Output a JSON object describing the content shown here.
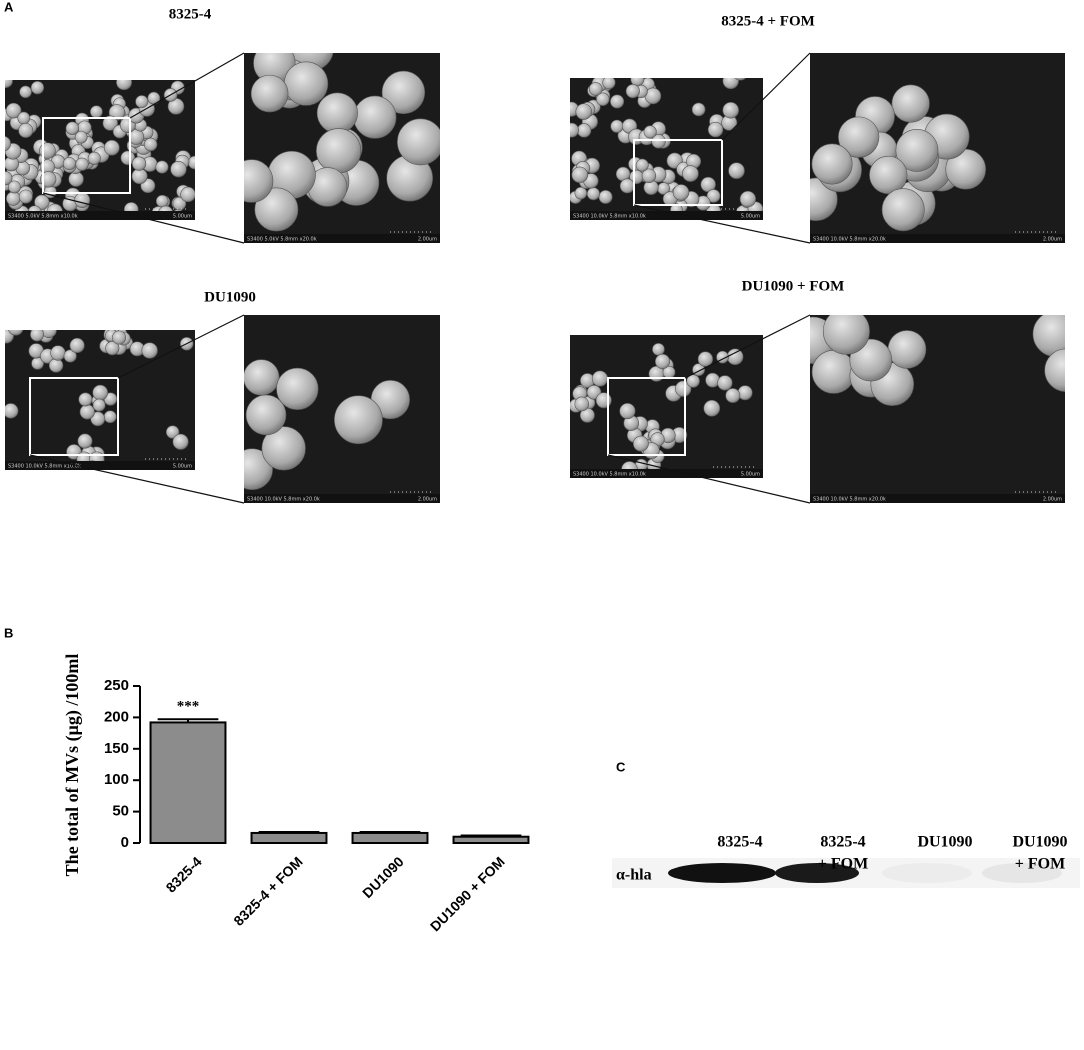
{
  "panel_labels": [
    "A",
    "B",
    "C"
  ],
  "sem_panels": [
    {
      "title": "8325-4",
      "low_mag_caption": "S3400 5.0kV 5.8mm x10.0k",
      "low_mag_scale": "5.00um",
      "high_mag_caption": "S3400 5.0kV 5.8mm x20.0k",
      "high_mag_scale": "2.00um"
    },
    {
      "title": "8325-4 + FOM",
      "low_mag_caption": "S3400 10.0kV 5.8mm x10.0k",
      "low_mag_scale": "5.00um",
      "high_mag_caption": "S3400 10.0kV 5.8mm x20.0k",
      "high_mag_scale": "2.00um"
    },
    {
      "title": "DU1090",
      "low_mag_caption": "S3400 10.0kV 5.8mm x10.0k",
      "low_mag_scale": "5.00um",
      "high_mag_caption": "S3400 10.0kV 5.8mm x20.0k",
      "high_mag_scale": "2.00um"
    },
    {
      "title": "DU1090 + FOM",
      "low_mag_caption": "S3400 10.0kV 5.8mm x10.0k",
      "low_mag_scale": "5.00um",
      "high_mag_caption": "S3400 10.0kV 5.8mm x20.0k",
      "high_mag_scale": "2.00um"
    }
  ],
  "chart_data": {
    "type": "bar",
    "y_label": "The total of MVs (μg) /100ml",
    "categories": [
      "8325-4",
      "8325-4 + FOM",
      "DU1090",
      "DU1090 + FOM"
    ],
    "values": [
      192,
      16,
      16,
      10
    ],
    "errors": [
      5,
      1.5,
      1.5,
      2
    ],
    "annotation": "***",
    "color": "#8c8c8c",
    "ylim": [
      0,
      250
    ],
    "yticks": [
      0,
      50,
      100,
      150,
      200,
      250
    ]
  },
  "blot": {
    "lanes": [
      [
        "8325-4"
      ],
      [
        "8325-4",
        "+ FOM"
      ],
      [
        "DU1090"
      ],
      [
        "DU1090",
        "+ FOM"
      ]
    ],
    "antibody": "α-hla"
  }
}
